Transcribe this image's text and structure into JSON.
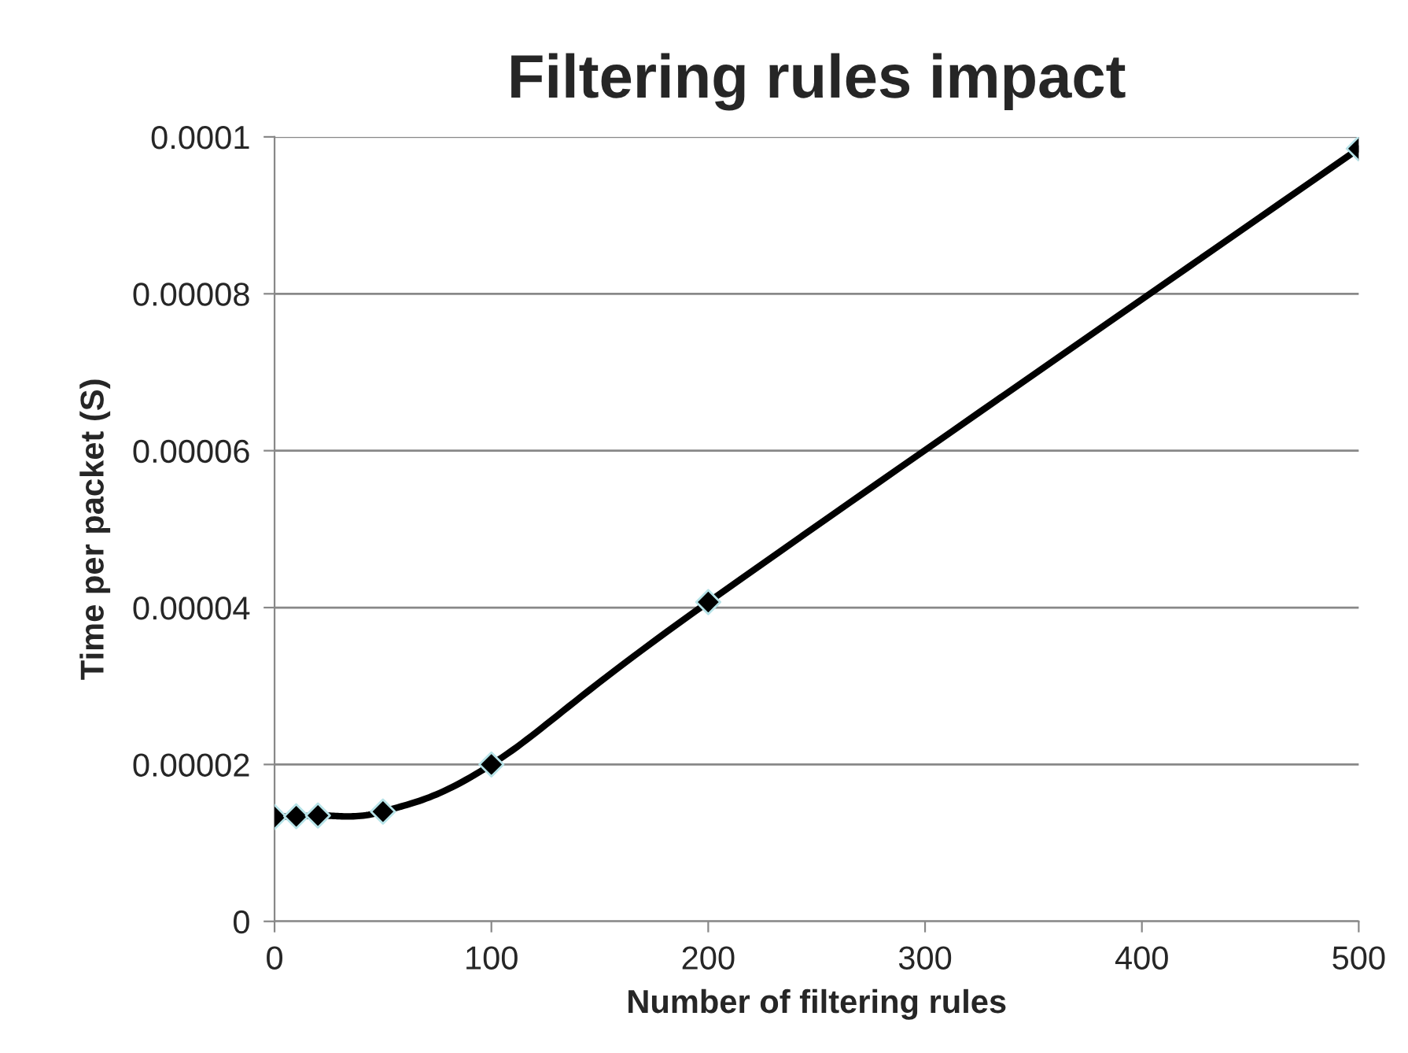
{
  "chart_data": {
    "type": "line",
    "title": "Filtering rules impact",
    "xlabel": "Number of filtering rules",
    "ylabel": "Time per packet (S)",
    "x": [
      0,
      10,
      20,
      50,
      100,
      200,
      500
    ],
    "series": [
      {
        "color": "#000000",
        "values": [
          1.33e-05,
          1.34e-05,
          1.35e-05,
          1.4e-05,
          2e-05,
          4.07e-05,
          9.85e-05
        ]
      }
    ],
    "xlim": [
      0,
      500
    ],
    "xticks": [
      0,
      100,
      200,
      300,
      400,
      500
    ],
    "ylim": [
      0,
      0.0001
    ],
    "yticks": [
      {
        "value": 0,
        "label": "0"
      },
      {
        "value": 2e-05,
        "label": "0.00002"
      },
      {
        "value": 4e-05,
        "label": "0.00004"
      },
      {
        "value": 6e-05,
        "label": "0.00006"
      },
      {
        "value": 8e-05,
        "label": "0.00008"
      },
      {
        "value": 0.0001,
        "label": "0.0001"
      }
    ],
    "grid": "y",
    "marker": "diamond",
    "line_style": "solid"
  }
}
